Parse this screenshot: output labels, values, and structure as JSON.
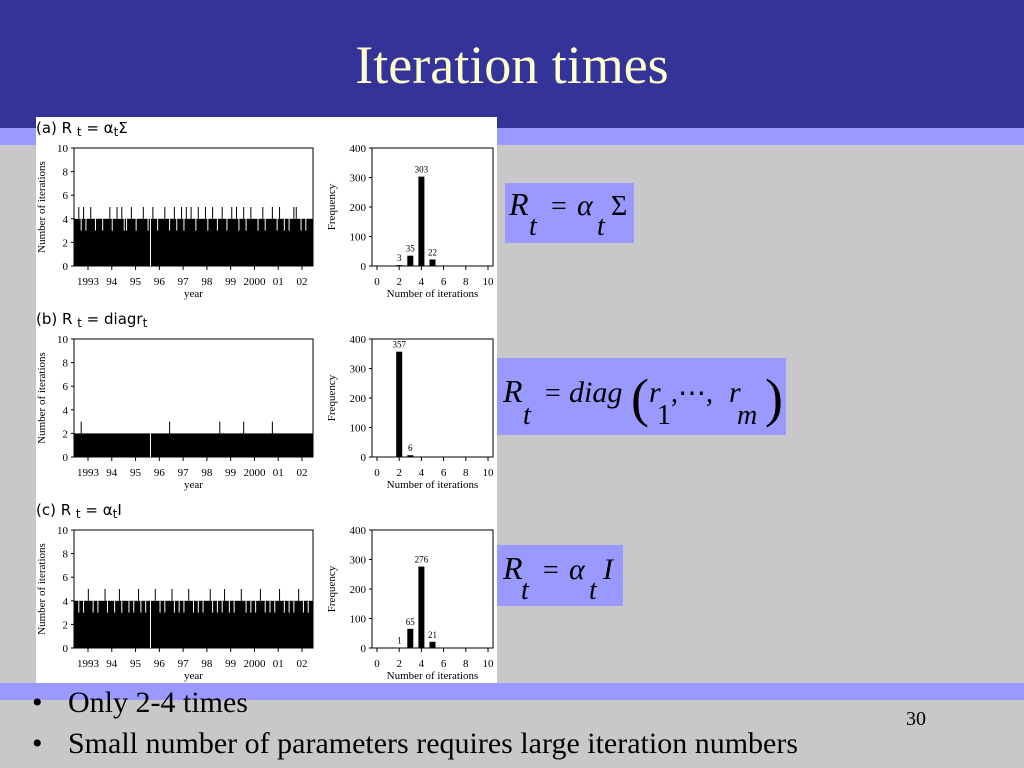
{
  "slide": {
    "title": "Iteration times",
    "page_number": "30",
    "bullets": [
      "Only 2-4 times",
      "Small number of parameters requires large iteration numbers"
    ],
    "equations": [
      {
        "text": "R_t = α_t Σ"
      },
      {
        "text": "R_t = diag(r_1, ⋯, r_m)"
      },
      {
        "text": "R_t = α_t I"
      }
    ]
  },
  "chart_data": [
    {
      "panel": "(a)",
      "panel_formula": "R t = αtΣ",
      "panel_formula_parts": {
        "lhs": "R",
        "lhs_sub": "t",
        "rhs": "α",
        "rhs_sub": "t",
        "rhs_tail": "Σ"
      },
      "timeseries": {
        "type": "bar",
        "xlabel": "year",
        "ylabel": "Number of iterations",
        "ylim": [
          0,
          10
        ],
        "yticks": [
          0,
          2,
          4,
          6,
          8,
          10
        ],
        "xticks": [
          "1993",
          "94",
          "95",
          "96",
          "97",
          "98",
          "99",
          "2000",
          "01",
          "02"
        ],
        "baseline_value": 4,
        "spikes_up": [
          0.02,
          0.04,
          0.07,
          0.15,
          0.18,
          0.2,
          0.24,
          0.29,
          0.33,
          0.38,
          0.42,
          0.45,
          0.47,
          0.49,
          0.52,
          0.55,
          0.58,
          0.62,
          0.66,
          0.68,
          0.71,
          0.74,
          0.79,
          0.83,
          0.86,
          0.92,
          0.93
        ],
        "dips": [
          0.03,
          0.05,
          0.09,
          0.12,
          0.16,
          0.21,
          0.22,
          0.26,
          0.31,
          0.35,
          0.4,
          0.43,
          0.46,
          0.51,
          0.56,
          0.6,
          0.64,
          0.69,
          0.72,
          0.77,
          0.8,
          0.85,
          0.88,
          0.9,
          0.95,
          0.97
        ]
      },
      "histogram": {
        "type": "bar",
        "xlabel": "Number of iterations",
        "ylabel": "Frequency",
        "ylim": [
          0,
          400
        ],
        "yticks": [
          0,
          100,
          200,
          300,
          400
        ],
        "xlim": [
          0,
          10
        ],
        "xticks": [
          0,
          2,
          4,
          6,
          8,
          10
        ],
        "bars": [
          {
            "x": 2,
            "value": 3
          },
          {
            "x": 3,
            "value": 35
          },
          {
            "x": 4,
            "value": 303
          },
          {
            "x": 5,
            "value": 22
          }
        ]
      }
    },
    {
      "panel": "(b)",
      "panel_formula": "R t = diagrt",
      "panel_formula_parts": {
        "lhs": "R",
        "lhs_sub": "t",
        "rhs": "diagr",
        "rhs_sub": "t",
        "rhs_tail": ""
      },
      "timeseries": {
        "type": "bar",
        "xlabel": "year",
        "ylabel": "Number of iterations",
        "ylim": [
          0,
          10
        ],
        "yticks": [
          0,
          2,
          4,
          6,
          8,
          10
        ],
        "xticks": [
          "1993",
          "94",
          "95",
          "96",
          "97",
          "98",
          "99",
          "2000",
          "01",
          "02"
        ],
        "baseline_value": 2,
        "spikes_up": [
          0.03,
          0.4,
          0.61,
          0.71,
          0.83
        ],
        "dips": []
      },
      "histogram": {
        "type": "bar",
        "xlabel": "Number of iterations",
        "ylabel": "Frequency",
        "ylim": [
          0,
          400
        ],
        "yticks": [
          0,
          100,
          200,
          300,
          400
        ],
        "xlim": [
          0,
          10
        ],
        "xticks": [
          0,
          2,
          4,
          6,
          8,
          10
        ],
        "bars": [
          {
            "x": 2,
            "value": 357
          },
          {
            "x": 3,
            "value": 6
          }
        ]
      }
    },
    {
      "panel": "(c)",
      "panel_formula": "R t = αtI",
      "panel_formula_parts": {
        "lhs": "R",
        "lhs_sub": "t",
        "rhs": "α",
        "rhs_sub": "t",
        "rhs_tail": "I"
      },
      "timeseries": {
        "type": "bar",
        "xlabel": "year",
        "ylabel": "Number of iterations",
        "ylim": [
          0,
          10
        ],
        "yticks": [
          0,
          2,
          4,
          6,
          8,
          10
        ],
        "xticks": [
          "1993",
          "94",
          "95",
          "96",
          "97",
          "98",
          "99",
          "2000",
          "01",
          "02"
        ],
        "baseline_value": 4,
        "spikes_up": [
          0.06,
          0.13,
          0.19,
          0.27,
          0.34,
          0.41,
          0.48,
          0.57,
          0.63,
          0.7,
          0.78,
          0.86,
          0.94
        ],
        "dips": [
          0.02,
          0.04,
          0.08,
          0.1,
          0.14,
          0.17,
          0.2,
          0.23,
          0.25,
          0.28,
          0.3,
          0.32,
          0.36,
          0.38,
          0.42,
          0.44,
          0.46,
          0.5,
          0.52,
          0.54,
          0.58,
          0.6,
          0.62,
          0.65,
          0.67,
          0.72,
          0.74,
          0.76,
          0.8,
          0.82,
          0.84,
          0.88,
          0.9,
          0.92,
          0.96,
          0.98
        ]
      },
      "histogram": {
        "type": "bar",
        "xlabel": "Number of iterations",
        "ylabel": "Frequency",
        "ylim": [
          0,
          400
        ],
        "yticks": [
          0,
          100,
          200,
          300,
          400
        ],
        "xlim": [
          0,
          10
        ],
        "xticks": [
          0,
          2,
          4,
          6,
          8,
          10
        ],
        "bars": [
          {
            "x": 2,
            "value": 1
          },
          {
            "x": 3,
            "value": 65
          },
          {
            "x": 4,
            "value": 276
          },
          {
            "x": 5,
            "value": 21
          }
        ]
      }
    }
  ]
}
